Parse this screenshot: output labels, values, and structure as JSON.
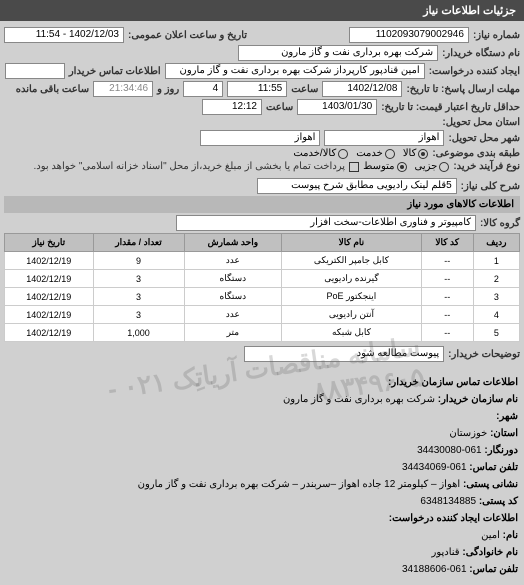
{
  "header": {
    "title": "جزئیات اطلاعات نیاز"
  },
  "fields": {
    "request_number_label": "شماره نیاز:",
    "request_number": "1102093079002946",
    "announce_datetime_label": "تاریخ و ساعت اعلان عمومی:",
    "announce_datetime": "1402/12/03 - 11:54",
    "buyer_name_label": "نام دستگاه خریدار:",
    "buyer_name": "شرکت بهره برداری نفت و گاز مارون",
    "requester_label": "ایجاد کننده درخواست:",
    "requester": "امین قنادپور کارپرداز شرکت بهره برداری نفت و گاز مارون",
    "buyer_contact_label": "اطلاعات تماس خریدار",
    "buyer_contact": "",
    "deadline_label": "مهلت ارسال پاسخ: تا تاریخ:",
    "deadline_date": "1402/12/08",
    "deadline_time_label": "ساعت",
    "deadline_time": "11:55",
    "days_label": "روز و",
    "days": "4",
    "remaining_label": "ساعت باقی مانده",
    "remaining": "21:34:46",
    "validity_label": "حداقل تاریخ اعتبار قیمت: تا تاریخ:",
    "validity_date": "1403/01/30",
    "validity_time_label": "ساعت",
    "validity_time": "12:12",
    "delivery_province_label": "استان محل تحویل:",
    "delivery_city_label": "شهر محل تحویل:",
    "delivery_city": "اهواز",
    "delivery_city2": "اهواز",
    "classification_label": "طبقه بندی موضوعی:",
    "goods_label": "کالا",
    "service_label": "خدمت",
    "goods_service_label": "کالا/خدمت",
    "process_type_label": "نوع فرآیند خرید:",
    "small_label": "جزیی",
    "medium_label": "متوسط",
    "payment_note": "پرداخت تمام یا بخشی از مبلغ خرید،از محل \"اسناد خزانه اسلامی\" خواهد بود.",
    "need_title_label": "شرح کلی نیاز:",
    "need_title": "5قلم لینک رادیویی مطابق شرح پیوست",
    "goods_info_header": "اطلاعات کالاهای مورد نیاز",
    "goods_group_label": "گروه کالا:",
    "goods_group": "کامپیوتر و فناوری اطلاعات-سخت افزار",
    "attachment_label": "توضیحات خریدار:",
    "attachment_text": "پیوست مطالعه شود",
    "contact_header": "اطلاعات تماس سازمان خریدار:",
    "org_name_label": "نام سازمان خریدار:",
    "org_name": "شرکت بهره برداری نفت و گاز مارون",
    "city_label": "شهر:",
    "province_label": "استان:",
    "province": "خوزستان",
    "fax_label": "دورنگار:",
    "fax": "061-34430080",
    "phone_label": "تلفن تماس:",
    "phone": "061-34434069",
    "postal_label": "نشانی پستی:",
    "postal": "اهواز – کیلومتر 12 جاده اهواز –سربندر – شرکت بهره برداری نفت و گاز مارون",
    "postcode_label": "کد پستی:",
    "postcode": "6348134885",
    "creator_header": "اطلاعات ایجاد کننده درخواست:",
    "creator_name_label": "نام:",
    "creator_name": "امین",
    "creator_family_label": "نام خانوادگی:",
    "creator_family": "قنادپور",
    "creator_phone_label": "تلفن تماس:",
    "creator_phone": "061-34188606"
  },
  "table": {
    "headers": {
      "row": "ردیف",
      "code": "کد کالا",
      "name": "نام کالا",
      "unit": "واحد شمارش",
      "qty": "تعداد / مقدار",
      "date": "تاریخ نیاز"
    },
    "rows": [
      {
        "n": "1",
        "code": "--",
        "name": "کابل جامپر الکتریکی",
        "unit": "عدد",
        "qty": "9",
        "date": "1402/12/19"
      },
      {
        "n": "2",
        "code": "--",
        "name": "گیرنده رادیویی",
        "unit": "دستگاه",
        "qty": "3",
        "date": "1402/12/19"
      },
      {
        "n": "3",
        "code": "--",
        "name": "اینجکتور PoE",
        "unit": "دستگاه",
        "qty": "3",
        "date": "1402/12/19"
      },
      {
        "n": "4",
        "code": "--",
        "name": "آنتن رادیویی",
        "unit": "عدد",
        "qty": "3",
        "date": "1402/12/19"
      },
      {
        "n": "5",
        "code": "--",
        "name": "کابل شبکه",
        "unit": "متر",
        "qty": "1,000",
        "date": "1402/12/19"
      }
    ]
  },
  "watermark": "سامانه مناقصات آریاتِک\n۰۲۱ - ۸۸۳۴۹۶۰۵"
}
